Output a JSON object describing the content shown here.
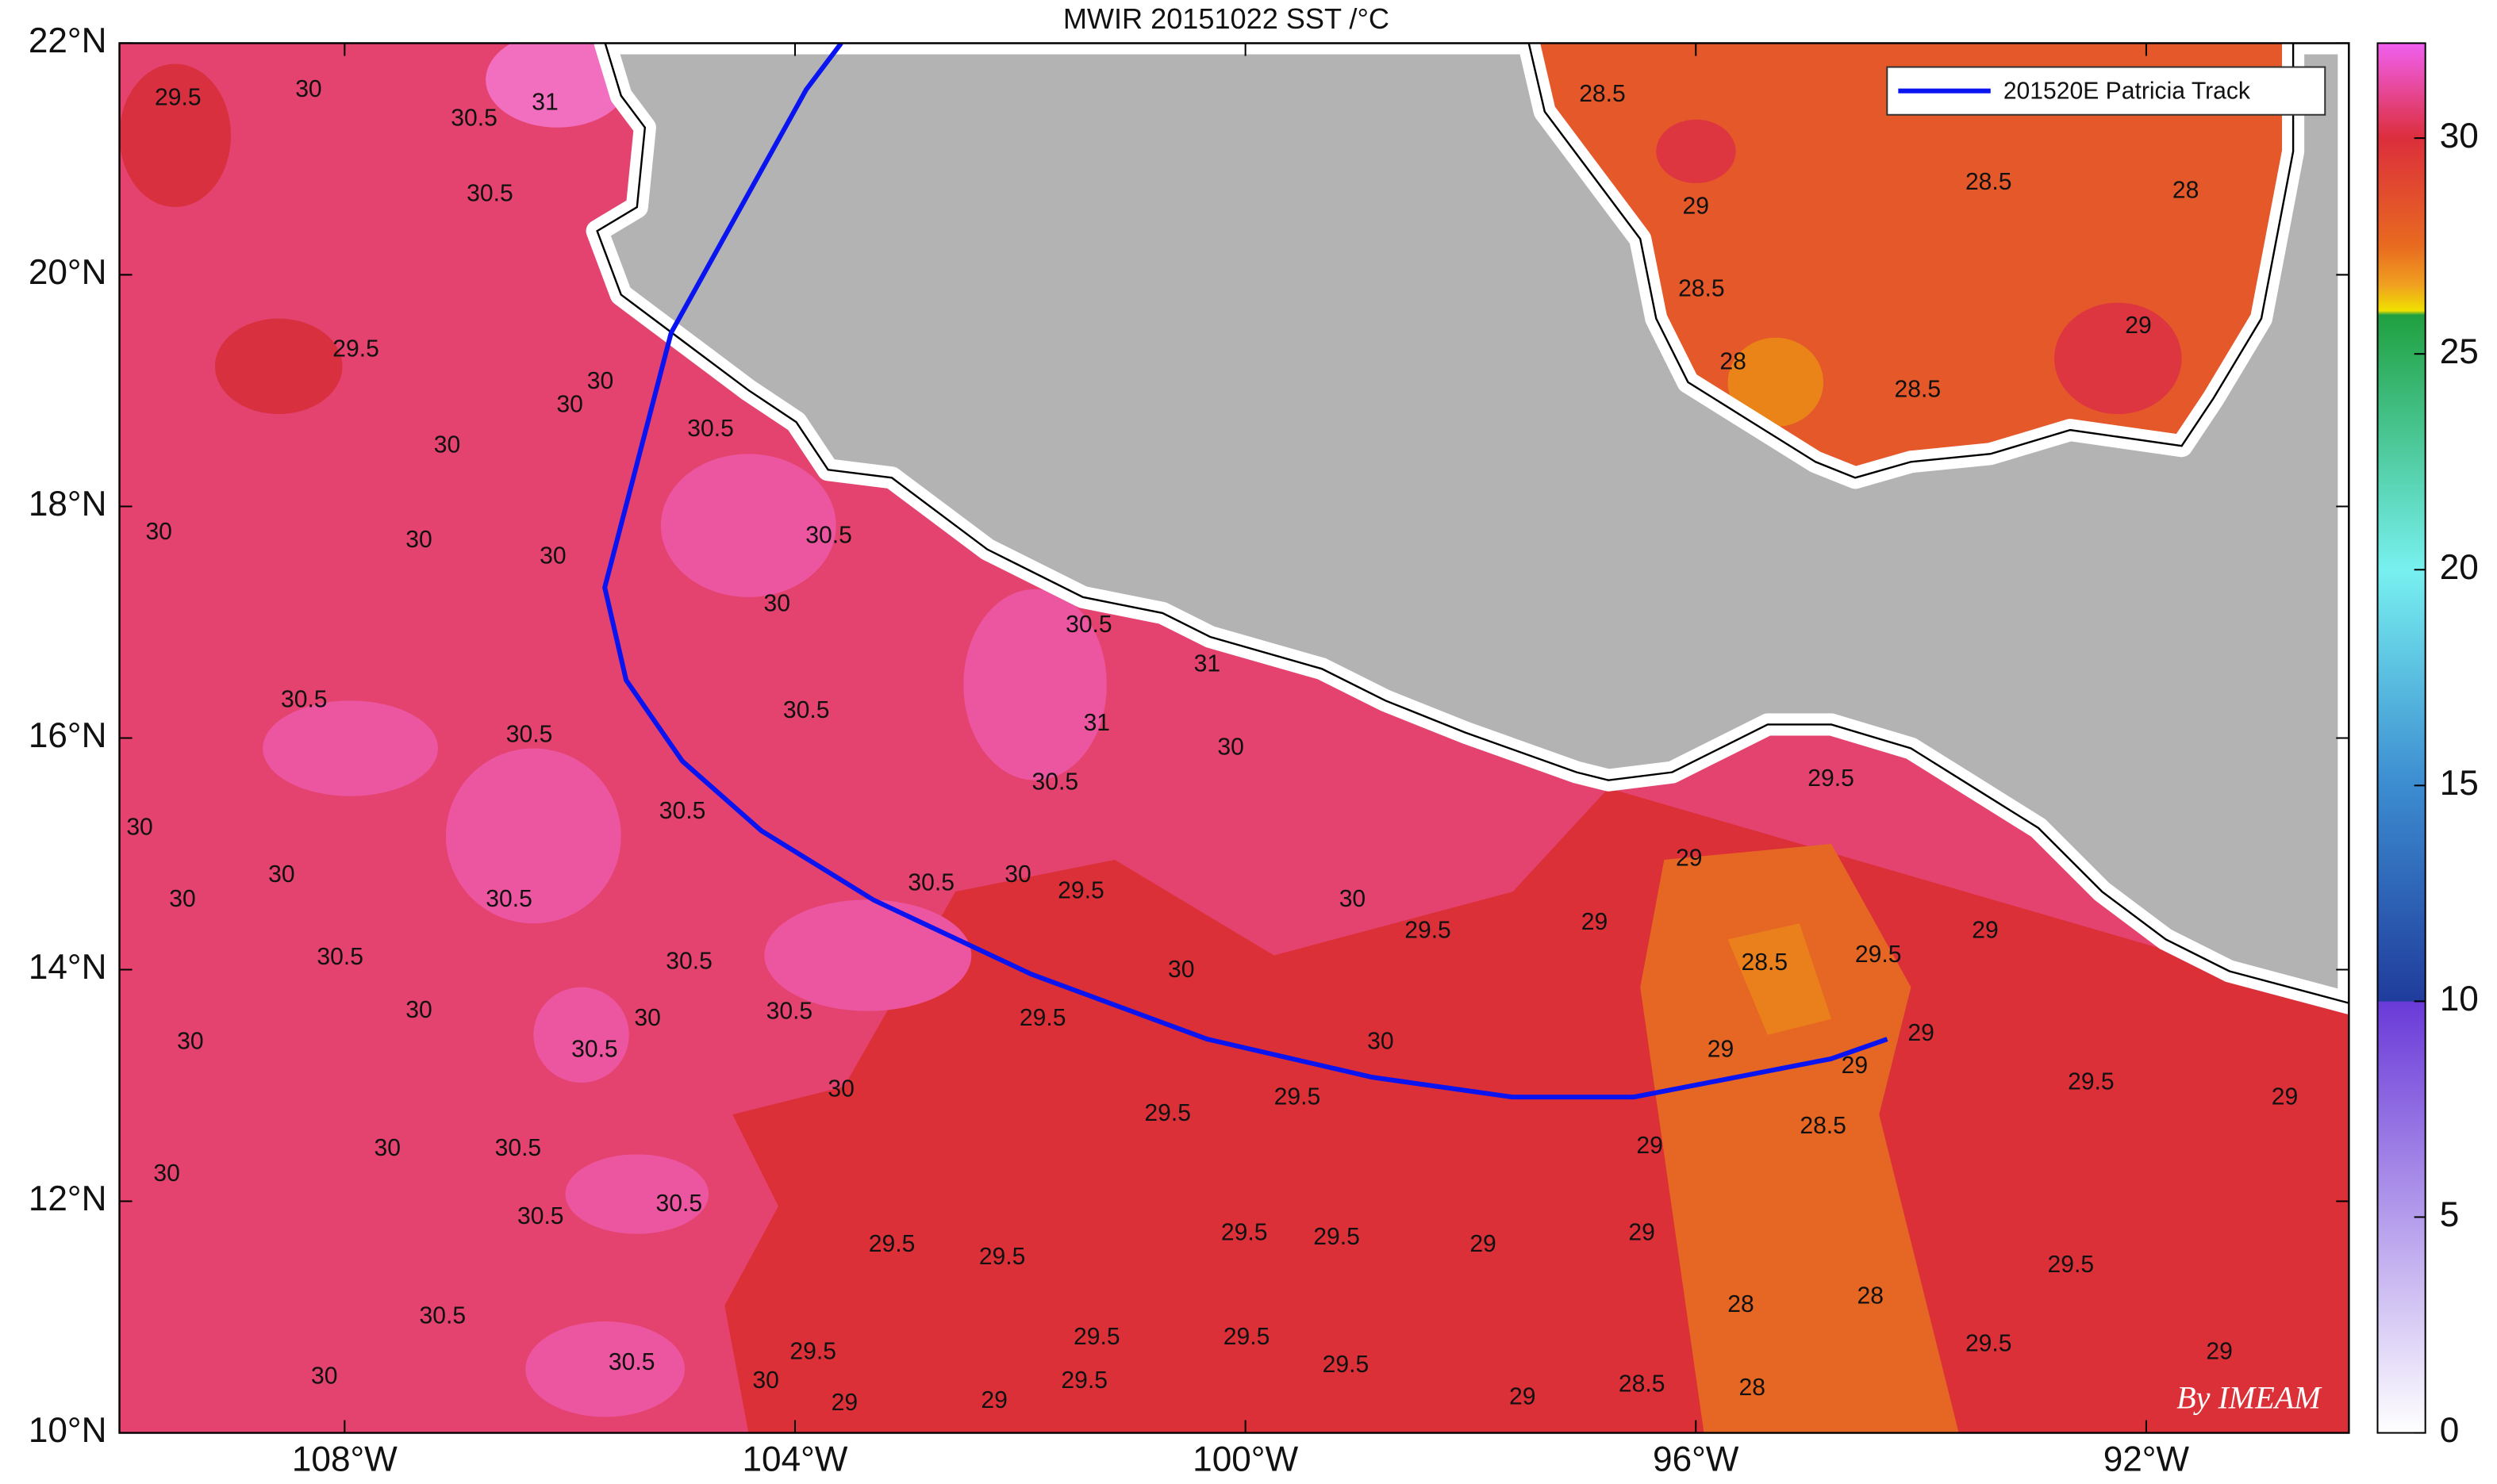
{
  "chart_data": {
    "type": "map",
    "title": "MWIR 20151022 SST /°C",
    "xlim": [
      -110,
      -90.2
    ],
    "ylim": [
      10,
      22
    ],
    "xticks": [
      {
        "value": -108,
        "label": "108°W"
      },
      {
        "value": -104,
        "label": "104°W"
      },
      {
        "value": -100,
        "label": "100°W"
      },
      {
        "value": -96,
        "label": "96°W"
      },
      {
        "value": -92,
        "label": "92°W"
      }
    ],
    "yticks": [
      {
        "value": 10,
        "label": "10°N"
      },
      {
        "value": 12,
        "label": "12°N"
      },
      {
        "value": 14,
        "label": "14°N"
      },
      {
        "value": 16,
        "label": "16°N"
      },
      {
        "value": 18,
        "label": "18°N"
      },
      {
        "value": 20,
        "label": "20°N"
      },
      {
        "value": 22,
        "label": "22°N"
      }
    ],
    "track": {
      "name": "201520E Patricia Track",
      "color": "#0a14f0",
      "x": [
        -103.59,
        -103.9,
        -105.1,
        -105.69,
        -105.5,
        -105.0,
        -104.3,
        -103.3,
        -101.9,
        -100.34,
        -98.87,
        -97.63,
        -96.55,
        -94.8,
        -94.3
      ],
      "y": [
        22,
        21.6,
        19.5,
        17.3,
        16.5,
        15.8,
        15.2,
        14.6,
        13.96,
        13.4,
        13.07,
        12.9,
        12.9,
        13.23,
        13.4
      ]
    },
    "contour_labels": {
      "values": [
        29.5,
        30,
        30.5,
        31,
        30.5,
        29.5,
        30,
        30,
        30,
        30.5,
        30,
        30,
        30,
        30.5,
        30,
        30.5,
        31,
        30.5,
        30.5,
        30.5,
        31,
        30,
        30.5,
        30.5,
        29.5,
        30,
        30.5,
        30,
        30,
        30.5,
        30,
        29.5,
        30,
        29,
        29.5,
        29,
        28.5,
        29,
        29.5,
        30.5,
        30.5,
        30,
        30.5,
        30,
        30,
        29.5,
        30,
        30.5,
        30,
        29,
        29,
        29,
        29.5,
        29,
        30,
        29.5,
        29.5,
        30,
        30.5,
        28.5,
        29,
        30,
        30.5,
        30.5,
        29.5,
        29.5,
        29.5,
        29.5,
        29,
        29,
        29.5,
        28,
        28,
        29.5,
        29,
        30.5,
        30.5,
        29.5,
        29.5,
        29.5,
        29.5,
        29.5,
        30,
        30,
        29,
        29,
        29,
        28.5,
        28,
        28.5,
        29,
        28.5,
        28,
        28.5,
        29,
        28,
        28.5
      ],
      "x": [
        -109.48,
        -108.32,
        -106.85,
        -106.22,
        -106.71,
        -107.9,
        -105.73,
        -106.0,
        -107.09,
        -104.75,
        -109.65,
        -107.34,
        -106.15,
        -103.7,
        -104.16,
        -101.39,
        -100.34,
        -108.36,
        -106.36,
        -103.9,
        -101.32,
        -100.13,
        -105.0,
        -101.69,
        -94.8,
        -109.82,
        -106.54,
        -108.56,
        -109.44,
        -102.79,
        -102.02,
        -101.46,
        -99.05,
        -96.06,
        -98.38,
        -96.9,
        -95.39,
        -93.43,
        -94.38,
        -108.04,
        -104.94,
        -100.57,
        -104.05,
        -107.34,
        -105.31,
        -101.8,
        -109.37,
        -105.78,
        -98.8,
        -95.78,
        -94.0,
        -94.59,
        -92.49,
        -90.77,
        -103.59,
        -100.69,
        -99.54,
        -107.62,
        -106.46,
        -94.87,
        -96.41,
        -109.58,
        -106.26,
        -105.03,
        -102.16,
        -103.14,
        -100.01,
        -99.19,
        -97.89,
        -96.48,
        -92.67,
        -94.45,
        -95.6,
        -93.4,
        -91.35,
        -107.13,
        -105.45,
        -101.32,
        -99.99,
        -103.84,
        -101.43,
        -99.11,
        -108.18,
        -104.26,
        -103.56,
        -102.23,
        -97.54,
        -96.48,
        -95.5,
        -96.83,
        -96.0,
        -93.4,
        -91.65,
        -95.95,
        -92.07,
        -95.67,
        -94.03
      ],
      "y": [
        21.52,
        21.59,
        21.34,
        21.48,
        20.69,
        19.35,
        19.07,
        18.87,
        18.52,
        18.66,
        17.77,
        17.7,
        17.56,
        17.74,
        17.15,
        16.97,
        16.63,
        16.32,
        16.02,
        16.23,
        16.12,
        15.91,
        15.36,
        15.61,
        15.64,
        15.22,
        14.6,
        14.81,
        14.6,
        14.74,
        14.81,
        14.67,
        14.6,
        14.95,
        14.33,
        14.4,
        14.05,
        14.33,
        14.12,
        14.1,
        14.06,
        13.99,
        13.63,
        13.64,
        13.57,
        13.57,
        13.37,
        13.3,
        13.37,
        13.3,
        13.44,
        13.16,
        13.02,
        12.89,
        12.96,
        12.75,
        12.89,
        12.45,
        12.45,
        12.64,
        12.47,
        12.23,
        11.86,
        11.97,
        11.51,
        11.62,
        11.72,
        11.68,
        11.62,
        11.72,
        11.44,
        11.17,
        11.1,
        10.76,
        10.69,
        11.0,
        10.6,
        10.82,
        10.82,
        10.69,
        10.44,
        10.58,
        10.48,
        10.44,
        10.25,
        10.27,
        10.3,
        10.41,
        10.38,
        21.55,
        20.58,
        20.79,
        20.72,
        19.87,
        19.55,
        19.24,
        19.0
      ]
    },
    "colorbar": {
      "clim": [
        0,
        32.2
      ],
      "ticks": [
        0,
        5,
        10,
        15,
        20,
        25,
        30
      ],
      "colormap": [
        {
          "value": 0,
          "color": "#ffffff"
        },
        {
          "value": 9.99,
          "color": "#6a3ad8"
        },
        {
          "value": 10,
          "color": "#203c9c"
        },
        {
          "value": 15,
          "color": "#3c8cd0"
        },
        {
          "value": 20,
          "color": "#78f0f0"
        },
        {
          "value": 25.9,
          "color": "#20a040"
        },
        {
          "value": 26,
          "color": "#f0e000"
        },
        {
          "value": 26.6,
          "color": "#f0a020"
        },
        {
          "value": 27.5,
          "color": "#e86a20"
        },
        {
          "value": 30,
          "color": "#dc2e3c"
        },
        {
          "value": 32.2,
          "color": "#f060f0"
        }
      ]
    },
    "watermark": "By IMEAM"
  }
}
